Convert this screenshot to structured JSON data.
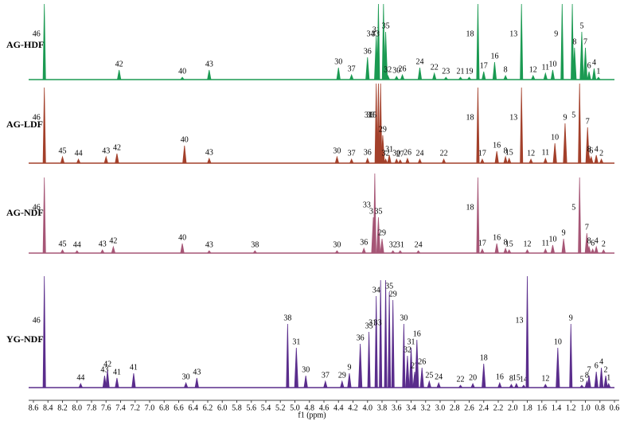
{
  "chart_data": {
    "type": "stacked-spectra",
    "xlabel": "f1 (ppm)",
    "xlim": [
      8.6,
      0.6
    ],
    "xticks": [
      8.6,
      8.4,
      8.2,
      {
        "value": 8,
        "label": "8.0"
      },
      7.8,
      7.6,
      7.4,
      7.2,
      {
        "value": 7,
        "label": "7.0"
      },
      6.8,
      6.6,
      6.4,
      6.2,
      {
        "value": 6,
        "label": "6.0"
      },
      5.8,
      5.6,
      5.4,
      5.2,
      {
        "value": 5,
        "label": "5.0"
      },
      4.8,
      4.6,
      4.4,
      4.2,
      {
        "value": 4,
        "label": "4.0"
      },
      3.8,
      3.6,
      3.4,
      3.2,
      {
        "value": 3,
        "label": "3.0"
      },
      2.8,
      2.6,
      2.4,
      2.2,
      {
        "value": 2,
        "label": "2.0"
      },
      1.8,
      1.6,
      1.4,
      1.2,
      {
        "value": 1,
        "label": "1.0"
      },
      0.8,
      0.6
    ],
    "series": [
      {
        "name": "AG-HDF",
        "color": "#1b9a52",
        "x": [
          8.45,
          7.42,
          6.55,
          6.18,
          4.4,
          4.22,
          4.0,
          3.88,
          3.85,
          3.78,
          3.75,
          3.72,
          3.6,
          3.52,
          3.28,
          3.08,
          2.92,
          2.72,
          2.6,
          2.48,
          2.4,
          2.25,
          2.1,
          1.88,
          1.72,
          1.55,
          1.45,
          1.32,
          1.18,
          1.15,
          1.05,
          1.0,
          0.95,
          0.88,
          0.82
        ],
        "values": [
          95,
          12,
          3,
          12,
          15,
          6,
          28,
          55,
          95,
          95,
          60,
          5,
          4,
          6,
          15,
          8,
          3,
          3,
          3,
          95,
          10,
          22,
          5,
          95,
          5,
          8,
          12,
          95,
          95,
          40,
          60,
          40,
          10,
          14,
          3
        ],
        "labels": [
          "46",
          "42",
          "40",
          "43",
          "30",
          "37",
          "36",
          "31",
          "34",
          "33",
          "35",
          "32",
          "30",
          "26",
          "24",
          "22",
          "23",
          "21",
          "19",
          "18",
          "17",
          "16",
          "8",
          "13",
          "12",
          "11",
          "10",
          "9",
          null,
          "8",
          "5",
          "7",
          "6",
          "4",
          "1"
        ]
      },
      {
        "name": "AG-LDF",
        "color": "#a3402b",
        "x": [
          8.45,
          8.2,
          7.98,
          7.6,
          7.45,
          6.52,
          6.18,
          4.42,
          4.22,
          4.0,
          3.88,
          3.85,
          3.82,
          3.79,
          3.75,
          3.7,
          3.6,
          3.55,
          3.45,
          3.28,
          2.95,
          2.48,
          2.42,
          2.22,
          2.1,
          2.05,
          1.88,
          1.75,
          1.55,
          1.42,
          1.28,
          1.08,
          0.97,
          0.95,
          0.92,
          0.85,
          0.78
        ],
        "values": [
          95,
          8,
          5,
          8,
          12,
          22,
          6,
          8,
          5,
          6,
          100,
          100,
          100,
          35,
          5,
          10,
          5,
          4,
          6,
          5,
          5,
          95,
          5,
          15,
          8,
          6,
          95,
          5,
          6,
          25,
          50,
          100,
          45,
          10,
          8,
          10,
          5
        ],
        "labels": [
          "46",
          "45",
          "44",
          "43",
          "42",
          "40",
          "43",
          "30",
          "37",
          "36",
          "31",
          "33",
          "35",
          "29",
          "32",
          "31",
          "30",
          "27",
          "26",
          "24",
          "22",
          "18",
          "17",
          "16",
          "8",
          "15",
          "13",
          "12",
          "11",
          "10",
          "9",
          "5",
          "7",
          "8",
          "6",
          "4",
          "2"
        ]
      },
      {
        "name": "AG-NDF",
        "color": "#a65676",
        "x": [
          8.45,
          8.2,
          8.0,
          7.65,
          7.5,
          6.55,
          6.18,
          5.55,
          4.42,
          4.05,
          3.92,
          3.9,
          3.85,
          3.8,
          3.65,
          3.55,
          3.3,
          2.48,
          2.42,
          2.22,
          2.1,
          2.05,
          1.8,
          1.55,
          1.45,
          1.3,
          1.08,
          0.98,
          0.95,
          0.9,
          0.85,
          0.75
        ],
        "values": [
          95,
          4,
          3,
          4,
          8,
          12,
          3,
          3,
          3,
          6,
          45,
          100,
          45,
          18,
          3,
          3,
          3,
          95,
          5,
          12,
          6,
          4,
          4,
          5,
          10,
          18,
          95,
          25,
          8,
          5,
          8,
          4
        ],
        "labels": [
          "46",
          "45",
          "44",
          "43",
          "42",
          "40",
          "43",
          "38",
          "30",
          "36",
          "31",
          "33",
          "35",
          "29",
          "32",
          "31",
          "24",
          "18",
          "17",
          "16",
          "8",
          "15",
          "12",
          "11",
          "10",
          "9",
          "5",
          "7",
          "8",
          "6",
          "4",
          "2"
        ]
      },
      {
        "name": "YG-NDF",
        "color": "#5a2d8c",
        "x": [
          8.45,
          7.95,
          7.62,
          7.58,
          7.45,
          7.22,
          6.5,
          6.35,
          5.1,
          4.98,
          4.85,
          4.58,
          4.35,
          4.25,
          4.1,
          3.98,
          3.88,
          3.82,
          3.75,
          3.7,
          3.65,
          3.5,
          3.45,
          3.4,
          3.35,
          3.32,
          3.25,
          3.15,
          3.02,
          2.72,
          2.55,
          2.4,
          2.18,
          2.02,
          1.95,
          1.85,
          1.8,
          1.55,
          1.38,
          1.2,
          1.05,
          0.98,
          0.95,
          0.85,
          0.78,
          0.72,
          0.68
        ],
        "values": [
          140,
          5,
          15,
          22,
          12,
          18,
          6,
          12,
          80,
          50,
          15,
          8,
          8,
          18,
          55,
          70,
          115,
          135,
          135,
          120,
          110,
          80,
          40,
          50,
          20,
          60,
          25,
          8,
          6,
          3,
          5,
          30,
          6,
          4,
          5,
          3,
          140,
          4,
          50,
          80,
          3,
          8,
          15,
          20,
          25,
          15,
          5
        ],
        "labels": [
          "46",
          "44",
          "43",
          "42",
          "41",
          "41",
          "30",
          "43",
          "38",
          "31",
          "30",
          "37",
          "29",
          "9",
          "36",
          "35",
          "34",
          "31",
          "33",
          "35",
          "29",
          "30",
          "32",
          "31",
          "27",
          "16",
          "26",
          "25",
          "24",
          "22",
          "20",
          "18",
          "16",
          "8",
          "15",
          "14",
          "13",
          "12",
          "10",
          "9",
          "5",
          "8",
          "7",
          "6",
          "4",
          "2",
          "1"
        ]
      }
    ]
  }
}
